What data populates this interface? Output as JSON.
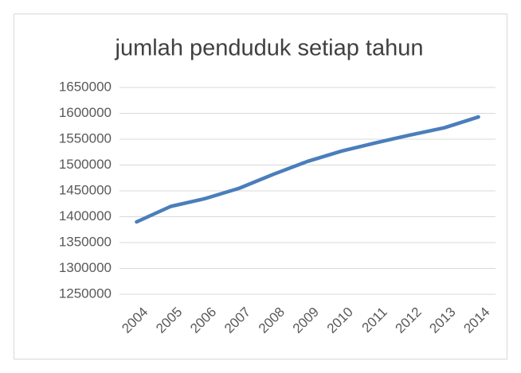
{
  "chart_data": {
    "type": "line",
    "title": "jumlah penduduk setiap tahun",
    "categories": [
      "2004",
      "2005",
      "2006",
      "2007",
      "2008",
      "2009",
      "2010",
      "2011",
      "2012",
      "2013",
      "2014"
    ],
    "series": [
      {
        "name": "jumlah penduduk",
        "color": "#4a7ebb",
        "values": [
          1390000,
          1420000,
          1435000,
          1455000,
          1482000,
          1507000,
          1527000,
          1543000,
          1558000,
          1572000,
          1593000
        ]
      }
    ],
    "ylim": [
      1250000,
      1650000
    ],
    "yticks": [
      1250000,
      1300000,
      1350000,
      1400000,
      1450000,
      1500000,
      1550000,
      1600000,
      1650000
    ],
    "grid": true
  }
}
